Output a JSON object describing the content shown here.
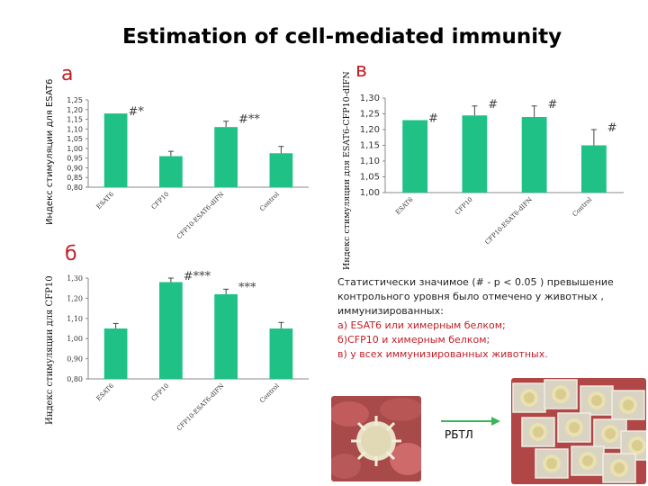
{
  "title": "Estimation of cell-mediated immunity",
  "panels": {
    "a": "а",
    "b": "б",
    "v": "в"
  },
  "axis_titles": {
    "a": "Индекс стимуляции для ESAT6",
    "b": "Индекс стимуляции для CFP10",
    "v": "Индекс стимуляции для ESAT6-CFP10-dIFN"
  },
  "colors": {
    "bar": "#20c187",
    "panel_letter": "#c0202a",
    "note_red": "#c0202a"
  },
  "chart_data": [
    {
      "id": "a",
      "type": "bar",
      "categories": [
        "ESAT6",
        "CFP10",
        "CFP10-ESAT6-dIFN",
        "Control"
      ],
      "values": [
        1.18,
        0.96,
        1.11,
        0.975
      ],
      "errors": [
        0.0,
        0.025,
        0.03,
        0.035
      ],
      "annotations": [
        "#*",
        "",
        "#**",
        ""
      ],
      "ylim": [
        0.8,
        1.25
      ],
      "yticks": [
        "0,80",
        "0,85",
        "0,90",
        "0,95",
        "1,00",
        "1,05",
        "1,10",
        "1,15",
        "1,20",
        "1,25"
      ]
    },
    {
      "id": "b",
      "type": "bar",
      "categories": [
        "ESAT6",
        "CFP10",
        "CFP10-ESAT6-dIFN",
        "Control"
      ],
      "values": [
        1.05,
        1.28,
        1.22,
        1.05
      ],
      "errors": [
        0.025,
        0.02,
        0.025,
        0.03
      ],
      "annotations": [
        "",
        "#***",
        "***",
        ""
      ],
      "ylim": [
        0.8,
        1.3
      ],
      "yticks": [
        "0,80",
        "0,90",
        "1,00",
        "1,10",
        "1,20",
        "1,30"
      ]
    },
    {
      "id": "v",
      "type": "bar",
      "categories": [
        "ESAT6",
        "CFP10",
        "CFP10-ESAT6-dIFN",
        "Control"
      ],
      "values": [
        1.23,
        1.245,
        1.24,
        1.15
      ],
      "errors": [
        0.0,
        0.03,
        0.035,
        0.05
      ],
      "annotations": [
        "#",
        "#",
        "#",
        "#"
      ],
      "ylim": [
        1.0,
        1.3
      ],
      "yticks": [
        "1,00",
        "1,05",
        "1,10",
        "1,15",
        "1,20",
        "1,25",
        "1,30"
      ]
    }
  ],
  "note": {
    "intro": "Статистически значимое (# - p < 0.05 ) превышение контрольного уровня было отмечено у животных , иммунизированных:",
    "a": "а) ESAT6 или химерным белком;",
    "b": "б)CFP10 и химерным белком;",
    "v": "в) у всех иммунизированных животных."
  },
  "rbtl_label": "РБТЛ"
}
